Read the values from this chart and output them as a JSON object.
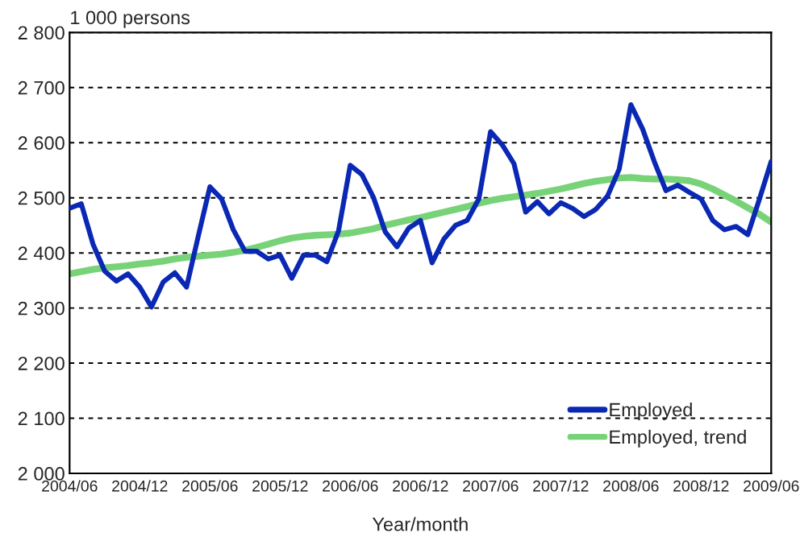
{
  "chart_data": {
    "type": "line",
    "xlabel": "Year/month",
    "ylabel": "1 000 persons",
    "categories": [
      "2004/06",
      null,
      null,
      null,
      null,
      null,
      "2004/12",
      null,
      null,
      null,
      null,
      null,
      "2005/06",
      null,
      null,
      null,
      null,
      null,
      "2005/12",
      null,
      null,
      null,
      null,
      null,
      "2006/06",
      null,
      null,
      null,
      null,
      null,
      "2006/12",
      null,
      null,
      null,
      null,
      null,
      "2007/06",
      null,
      null,
      null,
      null,
      null,
      "2007/12",
      null,
      null,
      null,
      null,
      null,
      "2008/06",
      null,
      null,
      null,
      null,
      null,
      "2008/12",
      null,
      null,
      null,
      null,
      null,
      "2009/06"
    ],
    "series": [
      {
        "name": "Employed",
        "color": "#0a28b4",
        "values": [
          2481,
          2489,
          2416,
          2367,
          2349,
          2362,
          2338,
          2302,
          2347,
          2364,
          2338,
          2430,
          2520,
          2498,
          2442,
          2403,
          2403,
          2389,
          2396,
          2354,
          2396,
          2396,
          2384,
          2440,
          2559,
          2542,
          2500,
          2438,
          2411,
          2445,
          2459,
          2382,
          2425,
          2450,
          2459,
          2498,
          2620,
          2596,
          2562,
          2474,
          2493,
          2471,
          2491,
          2481,
          2466,
          2479,
          2503,
          2552,
          2669,
          2625,
          2566,
          2513,
          2523,
          2510,
          2498,
          2459,
          2442,
          2448,
          2433,
          2498,
          2566
        ]
      },
      {
        "name": "Employed, trend",
        "color": "#78d278",
        "values": [
          2362,
          2366,
          2370,
          2373,
          2375,
          2377,
          2380,
          2382,
          2385,
          2389,
          2392,
          2394,
          2396,
          2398,
          2401,
          2405,
          2410,
          2416,
          2422,
          2427,
          2430,
          2432,
          2433,
          2434,
          2436,
          2440,
          2444,
          2450,
          2455,
          2460,
          2464,
          2469,
          2474,
          2479,
          2484,
          2490,
          2495,
          2499,
          2502,
          2505,
          2508,
          2512,
          2516,
          2521,
          2526,
          2530,
          2533,
          2536,
          2537,
          2535,
          2534,
          2534,
          2533,
          2531,
          2525,
          2516,
          2505,
          2494,
          2482,
          2470,
          2456
        ]
      }
    ],
    "ylim": [
      2000,
      2800
    ],
    "yticks": [
      {
        "value": 2000,
        "label": "2 000"
      },
      {
        "value": 2100,
        "label": "2 100"
      },
      {
        "value": 2200,
        "label": "2 200"
      },
      {
        "value": 2300,
        "label": "2 300"
      },
      {
        "value": 2400,
        "label": "2 400"
      },
      {
        "value": 2500,
        "label": "2 500"
      },
      {
        "value": 2600,
        "label": "2 600"
      },
      {
        "value": 2700,
        "label": "2 700"
      },
      {
        "value": 2800,
        "label": "2 800"
      }
    ],
    "grid": "y",
    "legend": "bottom right",
    "line_style": "solid",
    "marker": "none"
  }
}
